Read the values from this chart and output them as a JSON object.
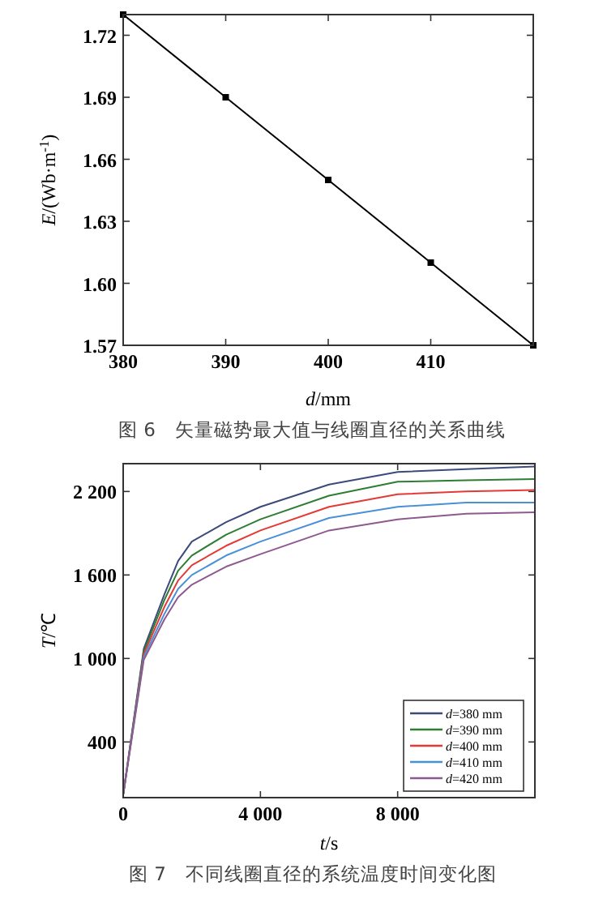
{
  "chart_data": [
    {
      "type": "line",
      "xlabel": "*d*/mm",
      "ylabel": "*E*/(Wb·m$^{-1}$)",
      "annotations": [
        "图 6　矢量磁势最大值与线圈直径的关系曲线"
      ],
      "x": [
        380,
        390,
        400,
        410,
        420
      ],
      "values": [
        1.73,
        1.69,
        1.65,
        1.61,
        1.57
      ],
      "color": "#000000",
      "marker": "square",
      "xlim": [
        380,
        420
      ],
      "ylim": [
        1.57,
        1.73
      ],
      "xticks": [
        380,
        390,
        400,
        410,
        {
          "value": 420,
          "label": null
        }
      ],
      "yticks": [
        1.57,
        {
          "value": 1.6,
          "label": "1.60"
        },
        1.63,
        1.66,
        1.69,
        1.72
      ]
    },
    {
      "type": "line",
      "xlabel": "*t*/s",
      "ylabel": "*T*/℃",
      "annotations": [
        "图 7　不同线圈直径的系统温度时间变化图"
      ],
      "x": [
        0,
        600,
        1200,
        1600,
        2000,
        3000,
        4000,
        6000,
        8000,
        10000,
        12000
      ],
      "xlim": [
        0,
        12000
      ],
      "ylim": [
        0,
        2400
      ],
      "xticks": [
        0,
        {
          "value": 4000,
          "label": "4 000"
        },
        {
          "value": 8000,
          "label": "8 000"
        }
      ],
      "yticks": [
        400,
        {
          "value": 1000,
          "label": "1 000"
        },
        {
          "value": 1600,
          "label": "1 600"
        },
        {
          "value": 2200,
          "label": "2 200"
        }
      ],
      "legend": "bottom right",
      "series": [
        {
          "name": "*d*=380 mm",
          "color": "#3b4a7a",
          "values": [
            20,
            1070,
            1460,
            1700,
            1840,
            1980,
            2090,
            2250,
            2340,
            2360,
            2380
          ]
        },
        {
          "name": "*d*=390 mm",
          "color": "#2e7d32",
          "values": [
            20,
            1050,
            1420,
            1630,
            1740,
            1890,
            2000,
            2170,
            2270,
            2280,
            2290
          ]
        },
        {
          "name": "*d*=400 mm",
          "color": "#e53935",
          "values": [
            20,
            1030,
            1370,
            1560,
            1670,
            1810,
            1920,
            2090,
            2180,
            2200,
            2210
          ]
        },
        {
          "name": "*d*=410 mm",
          "color": "#4a90d9",
          "values": [
            20,
            1010,
            1320,
            1500,
            1600,
            1740,
            1840,
            2010,
            2090,
            2120,
            2120
          ]
        },
        {
          "name": "*d*=420 mm",
          "color": "#8e5a8e",
          "values": [
            20,
            990,
            1280,
            1440,
            1530,
            1660,
            1750,
            1920,
            2000,
            2040,
            2050
          ]
        }
      ]
    }
  ]
}
